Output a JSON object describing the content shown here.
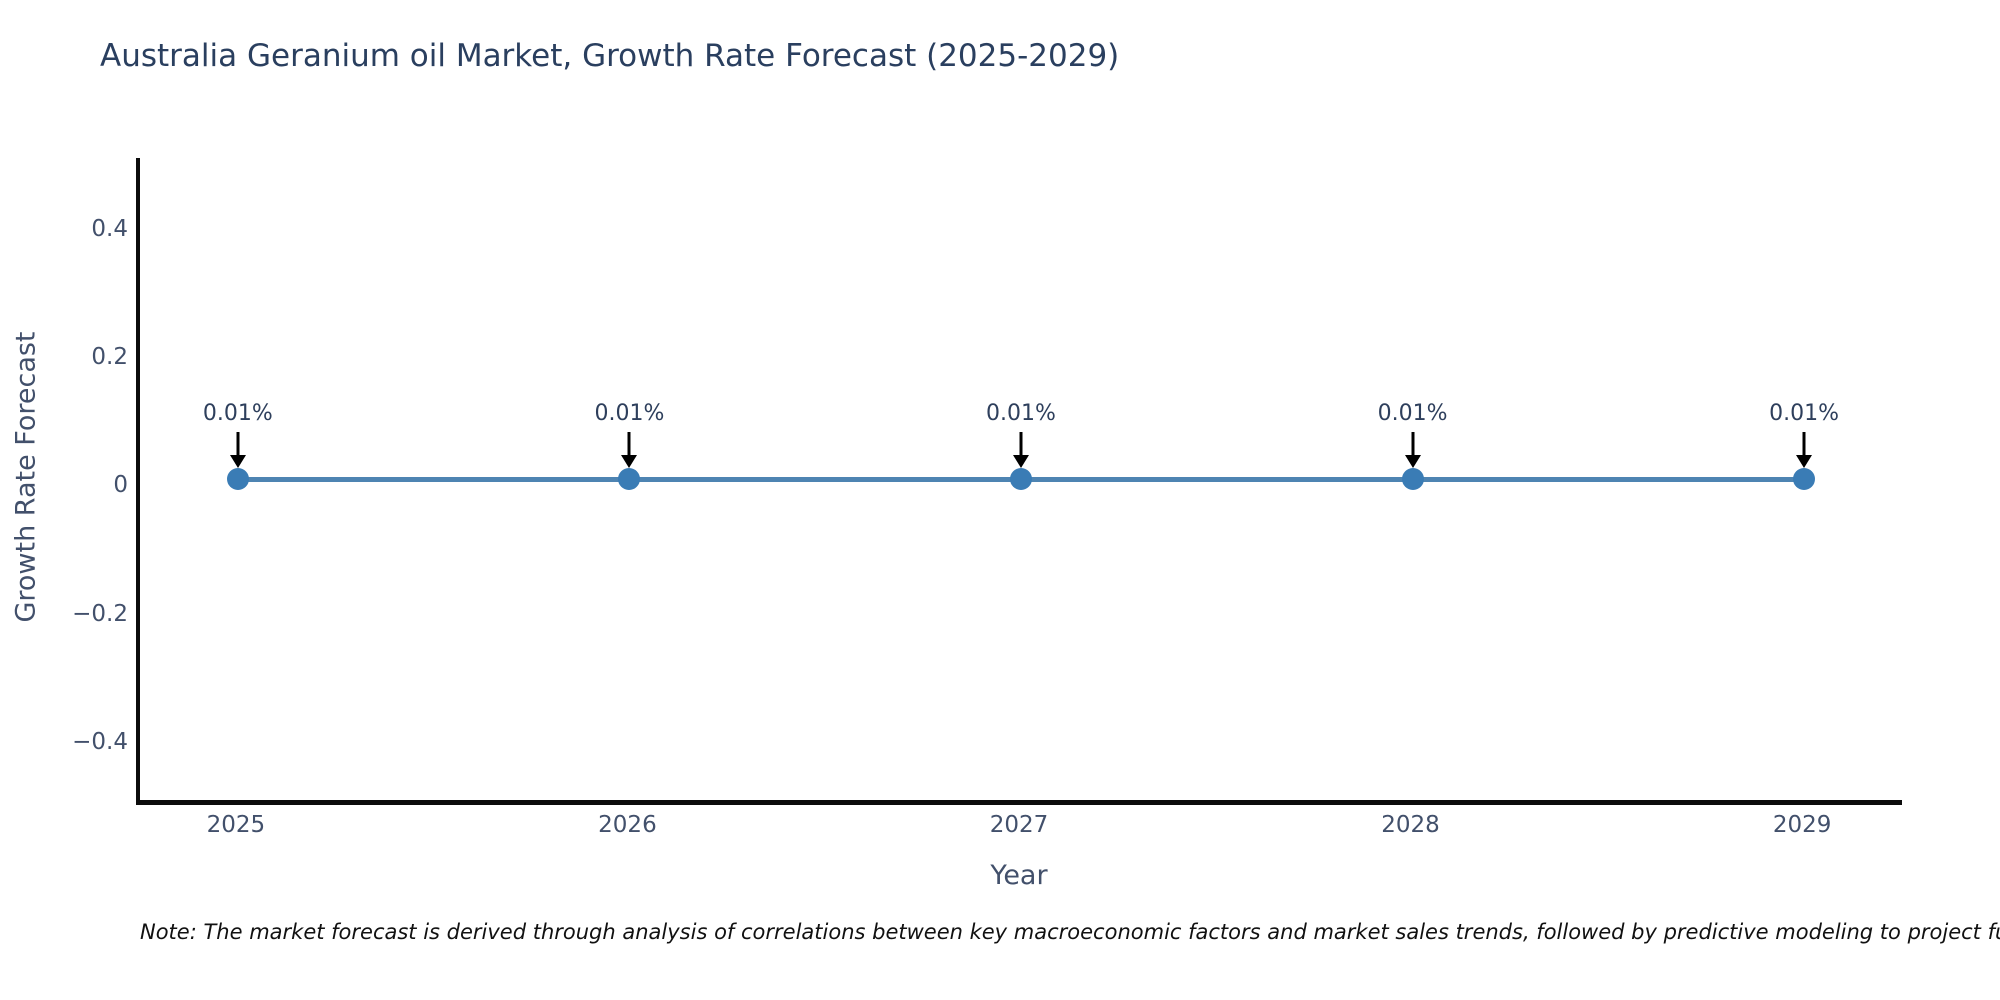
{
  "title": "Australia Geranium oil Market, Growth Rate Forecast (2025-2029)",
  "note": "Note: The market forecast is derived through analysis of correlations between key macroeconomic factors and market sales trends, followed by predictive modeling to project future sales",
  "chart_data": {
    "type": "line",
    "title": "Australia Geranium oil Market, Growth Rate Forecast (2025-2029)",
    "xlabel": "Year",
    "ylabel": "Growth Rate Forecast",
    "x": [
      2025,
      2026,
      2027,
      2028,
      2029
    ],
    "series": [
      {
        "name": "Growth Rate Forecast",
        "values": [
          0.01,
          0.01,
          0.01,
          0.01,
          0.01
        ]
      }
    ],
    "point_labels": [
      "0.01%",
      "0.01%",
      "0.01%",
      "0.01%",
      "0.01%"
    ],
    "xticks": [
      "2025",
      "2026",
      "2027",
      "2028",
      "2029"
    ],
    "yticks": [
      0.4,
      0.2,
      0,
      -0.2,
      -0.4
    ],
    "ytick_labels": [
      "0.4",
      "0.2",
      "0",
      "−0.2",
      "−0.4"
    ],
    "xlim": [
      2024.75,
      2029.25
    ],
    "ylim": [
      -0.49,
      0.51
    ],
    "grid": false,
    "legend_position": "none",
    "colors": {
      "line": "#4e84b2",
      "marker": "#3a7cb5",
      "arrow": "#000000",
      "title": "#2a3f5f",
      "axis_text": "#42506b",
      "axis_line": "#0c0c0c",
      "note_text": "#111111",
      "background": "#ffffff"
    }
  }
}
